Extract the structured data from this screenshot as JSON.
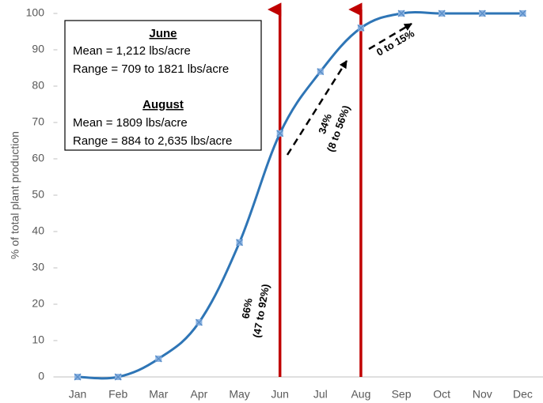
{
  "chart_data": {
    "type": "line",
    "ylabel": "% of total plant production",
    "categories": [
      "Jan",
      "Feb",
      "Mar",
      "Apr",
      "May",
      "Jun",
      "Jul",
      "Aug",
      "Sep",
      "Oct",
      "Nov",
      "Dec"
    ],
    "values": [
      0,
      0,
      5,
      15,
      37,
      67,
      84,
      96,
      100,
      100,
      100,
      100
    ],
    "color": "#2e75b6",
    "ylim": [
      0,
      100
    ],
    "yticks": [
      0,
      10,
      20,
      30,
      40,
      50,
      60,
      70,
      80,
      90,
      100
    ],
    "grid": false,
    "info_box": [
      {
        "heading": "June",
        "lines": [
          "Mean = 1,212 lbs/acre",
          "Range = 709 to 1821 lbs/acre"
        ]
      },
      {
        "heading": "August",
        "lines": [
          "Mean = 1809 lbs/acre",
          "Range = 884 to 2,635 lbs/acre"
        ]
      }
    ],
    "arrow_labels": [
      {
        "lines": [
          "66%",
          "(47 to 92%)"
        ]
      },
      {
        "lines": [
          "34%",
          "(8 to 56%)"
        ]
      },
      {
        "lines": [
          "0 to 15%"
        ]
      }
    ]
  }
}
